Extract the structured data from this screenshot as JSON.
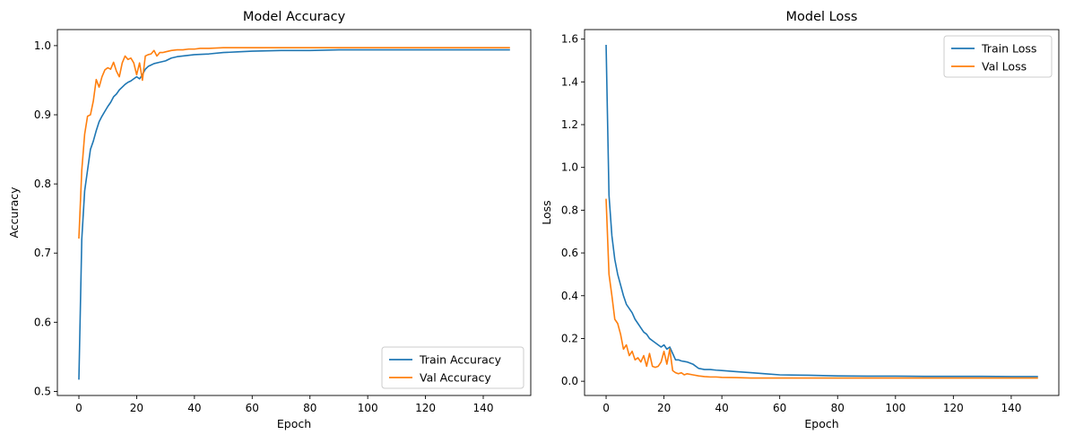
{
  "chart_data": [
    {
      "type": "line",
      "title": "Model Accuracy",
      "xlabel": "Epoch",
      "ylabel": "Accuracy",
      "xlim": [
        -7.45,
        156.45
      ],
      "ylim": [
        0.4941,
        1.0232
      ],
      "xticks": [
        0,
        20,
        40,
        60,
        80,
        100,
        120,
        140
      ],
      "yticks": [
        0.5,
        0.6,
        0.7,
        0.8,
        0.9,
        1.0
      ],
      "ytick_labels": [
        "0.5",
        "0.6",
        "0.7",
        "0.8",
        "0.9",
        "1.0"
      ],
      "grid": false,
      "legend": "lower-right",
      "series": [
        {
          "name": "Train Accuracy",
          "color": "#1f77b4",
          "x": [
            0,
            1,
            2,
            3,
            4,
            5,
            6,
            7,
            8,
            9,
            10,
            11,
            12,
            13,
            14,
            15,
            16,
            17,
            18,
            19,
            20,
            21,
            22,
            23,
            24,
            25,
            26,
            28,
            30,
            32,
            34,
            36,
            38,
            40,
            45,
            50,
            55,
            60,
            70,
            80,
            90,
            100,
            110,
            120,
            130,
            140,
            149
          ],
          "y": [
            0.518,
            0.72,
            0.79,
            0.82,
            0.85,
            0.862,
            0.877,
            0.89,
            0.898,
            0.905,
            0.912,
            0.918,
            0.926,
            0.93,
            0.936,
            0.94,
            0.944,
            0.947,
            0.949,
            0.952,
            0.955,
            0.952,
            0.958,
            0.966,
            0.97,
            0.972,
            0.974,
            0.976,
            0.978,
            0.982,
            0.984,
            0.985,
            0.986,
            0.987,
            0.988,
            0.99,
            0.991,
            0.992,
            0.993,
            0.993,
            0.994,
            0.994,
            0.994,
            0.994,
            0.994,
            0.994,
            0.994
          ]
        },
        {
          "name": "Val Accuracy",
          "color": "#ff7f0e",
          "x": [
            0,
            1,
            2,
            3,
            4,
            5,
            6,
            7,
            8,
            9,
            10,
            11,
            12,
            13,
            14,
            15,
            16,
            17,
            18,
            19,
            20,
            21,
            22,
            23,
            24,
            25,
            26,
            27,
            28,
            29,
            30,
            32,
            34,
            36,
            38,
            40,
            42,
            45,
            50,
            55,
            60,
            70,
            80,
            90,
            100,
            120,
            149
          ],
          "y": [
            0.722,
            0.82,
            0.872,
            0.898,
            0.9,
            0.92,
            0.951,
            0.94,
            0.955,
            0.965,
            0.968,
            0.966,
            0.976,
            0.963,
            0.955,
            0.975,
            0.985,
            0.98,
            0.982,
            0.975,
            0.958,
            0.975,
            0.95,
            0.985,
            0.987,
            0.988,
            0.993,
            0.985,
            0.99,
            0.99,
            0.991,
            0.993,
            0.994,
            0.994,
            0.995,
            0.995,
            0.996,
            0.996,
            0.997,
            0.997,
            0.997,
            0.997,
            0.997,
            0.997,
            0.997,
            0.997,
            0.997
          ]
        }
      ]
    },
    {
      "type": "line",
      "title": "Model Loss",
      "xlabel": "Epoch",
      "ylabel": "Loss",
      "xlim": [
        -7.45,
        156.45
      ],
      "ylim": [
        -0.0665,
        1.6445
      ],
      "xticks": [
        0,
        20,
        40,
        60,
        80,
        100,
        120,
        140
      ],
      "yticks": [
        0.0,
        0.2,
        0.4,
        0.6,
        0.8,
        1.0,
        1.2,
        1.4,
        1.6
      ],
      "ytick_labels": [
        "0.0",
        "0.2",
        "0.4",
        "0.6",
        "0.8",
        "1.0",
        "1.2",
        "1.4",
        "1.6"
      ],
      "grid": false,
      "legend": "top-right",
      "series": [
        {
          "name": "Train Loss",
          "color": "#1f77b4",
          "x": [
            0,
            1,
            2,
            3,
            4,
            5,
            6,
            7,
            8,
            9,
            10,
            11,
            12,
            13,
            14,
            15,
            16,
            17,
            18,
            19,
            20,
            21,
            22,
            23,
            24,
            25,
            26,
            28,
            30,
            32,
            34,
            36,
            38,
            40,
            42,
            45,
            50,
            55,
            60,
            70,
            80,
            90,
            100,
            110,
            120,
            130,
            140,
            149
          ],
          "y": [
            1.57,
            0.87,
            0.68,
            0.57,
            0.5,
            0.45,
            0.4,
            0.36,
            0.34,
            0.32,
            0.29,
            0.27,
            0.25,
            0.23,
            0.22,
            0.2,
            0.19,
            0.18,
            0.17,
            0.16,
            0.17,
            0.15,
            0.16,
            0.13,
            0.1,
            0.1,
            0.095,
            0.09,
            0.08,
            0.06,
            0.055,
            0.055,
            0.052,
            0.05,
            0.048,
            0.045,
            0.04,
            0.035,
            0.03,
            0.028,
            0.025,
            0.024,
            0.024,
            0.023,
            0.023,
            0.023,
            0.022,
            0.022
          ]
        },
        {
          "name": "Val Loss",
          "color": "#ff7f0e",
          "x": [
            0,
            1,
            2,
            3,
            4,
            5,
            6,
            7,
            8,
            9,
            10,
            11,
            12,
            13,
            14,
            15,
            16,
            17,
            18,
            19,
            20,
            21,
            22,
            23,
            24,
            25,
            26,
            27,
            28,
            30,
            32,
            34,
            36,
            38,
            40,
            45,
            50,
            55,
            60,
            70,
            80,
            90,
            100,
            120,
            149
          ],
          "y": [
            0.85,
            0.5,
            0.4,
            0.29,
            0.27,
            0.22,
            0.15,
            0.17,
            0.12,
            0.14,
            0.1,
            0.11,
            0.09,
            0.12,
            0.07,
            0.13,
            0.07,
            0.065,
            0.07,
            0.09,
            0.14,
            0.08,
            0.15,
            0.05,
            0.04,
            0.035,
            0.04,
            0.03,
            0.035,
            0.03,
            0.025,
            0.022,
            0.02,
            0.02,
            0.018,
            0.017,
            0.015,
            0.015,
            0.015,
            0.015,
            0.015,
            0.015,
            0.015,
            0.015,
            0.015
          ]
        }
      ]
    }
  ]
}
